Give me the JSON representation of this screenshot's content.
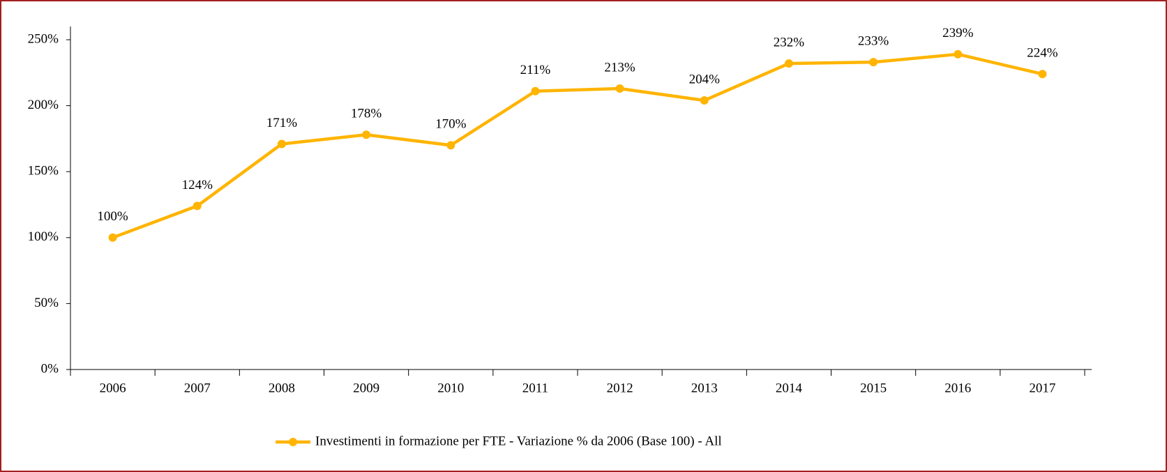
{
  "chart_data": {
    "type": "line",
    "categories": [
      "2006",
      "2007",
      "2008",
      "2009",
      "2010",
      "2011",
      "2012",
      "2013",
      "2014",
      "2015",
      "2016",
      "2017"
    ],
    "series": [
      {
        "name": "Investimenti in formazione per FTE - Variazione % da 2006 (Base 100) - All",
        "color": "#ffb400",
        "values": [
          100,
          124,
          171,
          178,
          170,
          211,
          213,
          204,
          232,
          233,
          239,
          224
        ],
        "value_labels": [
          "100%",
          "124%",
          "171%",
          "178%",
          "170%",
          "211%",
          "213%",
          "204%",
          "232%",
          "233%",
          "239%",
          "224%"
        ]
      }
    ],
    "ylim": [
      0,
      250
    ],
    "yticks": [
      {
        "value": 0,
        "label": "0%"
      },
      {
        "value": 50,
        "label": "50%"
      },
      {
        "value": 100,
        "label": "100%"
      },
      {
        "value": 150,
        "label": "150%"
      },
      {
        "value": 200,
        "label": "200%"
      },
      {
        "value": 250,
        "label": "250%"
      }
    ],
    "legend": "bottom",
    "grid": false
  }
}
